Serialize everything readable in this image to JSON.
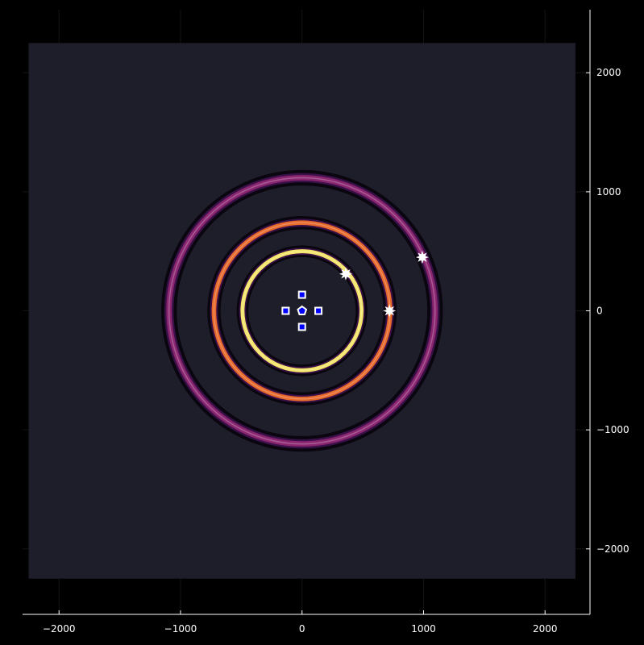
{
  "chart_data": {
    "type": "heatmap",
    "title": "",
    "xlabel": "",
    "ylabel": "",
    "xlim": [
      -2300,
      2370
    ],
    "ylim": [
      -2550,
      2530
    ],
    "image_extent": {
      "x": [
        -2250,
        2250
      ],
      "y": [
        -2250,
        2250
      ]
    },
    "grid": true,
    "y_axis_side": "right",
    "x_ticks": [
      -2000,
      -1000,
      0,
      1000,
      2000
    ],
    "x_tick_labels": [
      "−2000",
      "−1000",
      "0",
      "1000",
      "2000"
    ],
    "y_ticks": [
      2000,
      1000,
      0,
      -1000,
      -2000
    ],
    "y_tick_labels": [
      "2000",
      "1000",
      "0",
      "−1000",
      "−2000"
    ],
    "colormap": "inferno",
    "background_color": "#1e1e2a",
    "rings": [
      {
        "radius": 490,
        "width": 30,
        "color": "#f3e56a",
        "dark_halo": "#0a0610"
      },
      {
        "radius": 725,
        "width": 34,
        "color": "#e76a2c",
        "dark_halo": "#0a0610"
      },
      {
        "radius": 1095,
        "width": 40,
        "color": "#8a2570",
        "dark_halo": "#0a0610"
      }
    ],
    "markers_square": [
      {
        "x": 0,
        "y": 135
      },
      {
        "x": -135,
        "y": 0
      },
      {
        "x": 135,
        "y": 0
      },
      {
        "x": 0,
        "y": -135
      }
    ],
    "markers_pentagon": [
      {
        "x": 0,
        "y": 0
      }
    ],
    "markers_star": [
      {
        "x": 360,
        "y": 310
      },
      {
        "x": 720,
        "y": 0
      },
      {
        "x": 990,
        "y": 450
      }
    ],
    "marker_fill": "#0000ff",
    "marker_edge": "#ffffff"
  }
}
